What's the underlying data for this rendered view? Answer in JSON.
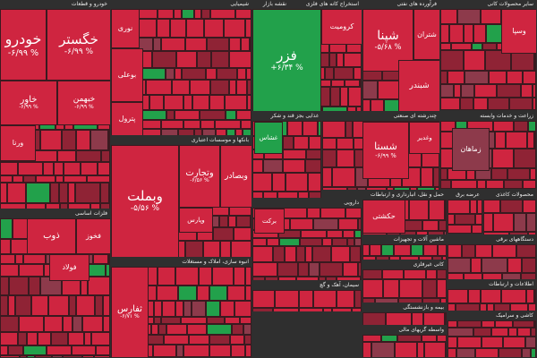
{
  "title": "نقشه بازار",
  "sectors": [
    {
      "name": "خودرو و قطعات",
      "tiles": [
        {
          "label": "خودرو",
          "change": "-۶/۹۹ %"
        },
        {
          "label": "خگستر",
          "change": "-۶/۹۹ %"
        },
        {
          "label": "خاور",
          "change": "-۶/۹۹ %"
        },
        {
          "label": "خبهمن",
          "change": "-۶/۹۹ %"
        },
        {
          "label": "ورنا"
        }
      ]
    },
    {
      "name": "شیمیایی",
      "tiles": [
        {
          "label": "نوری"
        },
        {
          "label": "بوعلی"
        },
        {
          "label": "پترول"
        }
      ]
    },
    {
      "name": "بانکها و موسسات اعتباری",
      "tiles": [
        {
          "label": "وبملت",
          "change": "-۵/۵۶ %"
        },
        {
          "label": "وتجارت",
          "change": "-۶/۵۶ %"
        },
        {
          "label": "وبصادر"
        },
        {
          "label": "وپارس"
        }
      ]
    },
    {
      "name": "فلزات اساسی",
      "tiles": [
        {
          "label": "ذوب"
        },
        {
          "label": "فخوز"
        },
        {
          "label": "فولاد"
        }
      ]
    },
    {
      "name": "انبوه سازی، املاک و مستغلات",
      "tiles": [
        {
          "label": "ثفارس",
          "change": "-۶/۷۱ %"
        }
      ]
    },
    {
      "name": "استخراج کانه های فلزی",
      "tiles": [
        {
          "label": "فزر",
          "change": "+۶/۳۴ %"
        },
        {
          "label": "کرومیت"
        }
      ]
    },
    {
      "name": "فرآورده های نفتی",
      "tiles": [
        {
          "label": "شپنا",
          "change": "-۵/۶۸ %"
        },
        {
          "label": "شتران"
        },
        {
          "label": "شبندر"
        }
      ]
    },
    {
      "name": "سایر محصولات کانی",
      "tiles": [
        {
          "label": "وسپا"
        }
      ]
    },
    {
      "name": "غذایی بجز قند و شکر",
      "tiles": [
        {
          "label": "غشاس"
        }
      ]
    },
    {
      "name": "چندرشته ای صنعتی",
      "tiles": [
        {
          "label": "شستا",
          "change": "-۶/۹۹ %"
        },
        {
          "label": "وغدیر"
        }
      ]
    },
    {
      "name": "زراعت و خدمات وابسته",
      "tiles": [
        {
          "label": "زماهان"
        }
      ]
    },
    {
      "name": "دارویی",
      "tiles": [
        {
          "label": "برکت"
        }
      ]
    },
    {
      "name": "حمل و نقل، انبارداری و ارتباطات",
      "tiles": [
        {
          "label": "حکشتی"
        }
      ]
    },
    {
      "name": "عرضه برق",
      "tiles": []
    },
    {
      "name": "محصولات کاغذی",
      "tiles": []
    },
    {
      "name": "ماشین آلات و تجهیزات",
      "tiles": []
    },
    {
      "name": "دستگاههای برقی",
      "tiles": []
    },
    {
      "name": "کانی غیرفلزی",
      "tiles": []
    },
    {
      "name": "سیمان، آهک و گچ",
      "tiles": []
    },
    {
      "name": "اطلاعات و ارتباطات",
      "tiles": []
    },
    {
      "name": "بیمه و بازنشستگی",
      "tiles": []
    },
    {
      "name": "واسطه گریهای مالی",
      "tiles": []
    },
    {
      "name": "کاشی و سرامیک",
      "tiles": []
    }
  ]
}
